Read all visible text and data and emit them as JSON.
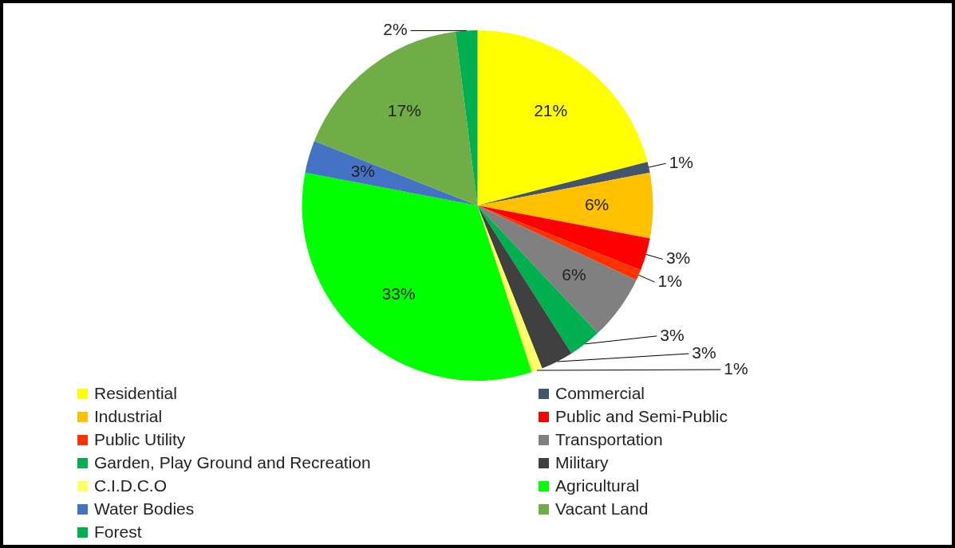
{
  "chart_data": {
    "type": "pie",
    "categories": [
      "Residential",
      "Commercial",
      "Industrial",
      "Public and Semi-Public",
      "Public Utility",
      "Transportation",
      "Garden, Play Ground and Recreation",
      "Military",
      "C.I.D.C.O",
      "Agricultural",
      "Water Bodies",
      "Vacant Land",
      "Forest"
    ],
    "values": [
      21,
      1,
      6,
      3,
      1,
      6,
      3,
      3,
      1,
      33,
      3,
      17,
      2
    ],
    "value_labels": [
      "21%",
      "1%",
      "6%",
      "3%",
      "1%",
      "6%",
      "3%",
      "3%",
      "1%",
      "33%",
      "3%",
      "17%",
      "2%"
    ],
    "colors": [
      "#ffff00",
      "#44546a",
      "#ffc000",
      "#ff0000",
      "#ff3300",
      "#808080",
      "#00b050",
      "#404040",
      "#ffff66",
      "#00ff00",
      "#4472c4",
      "#70ad47",
      "#00b050"
    ],
    "legend": "bottom"
  }
}
